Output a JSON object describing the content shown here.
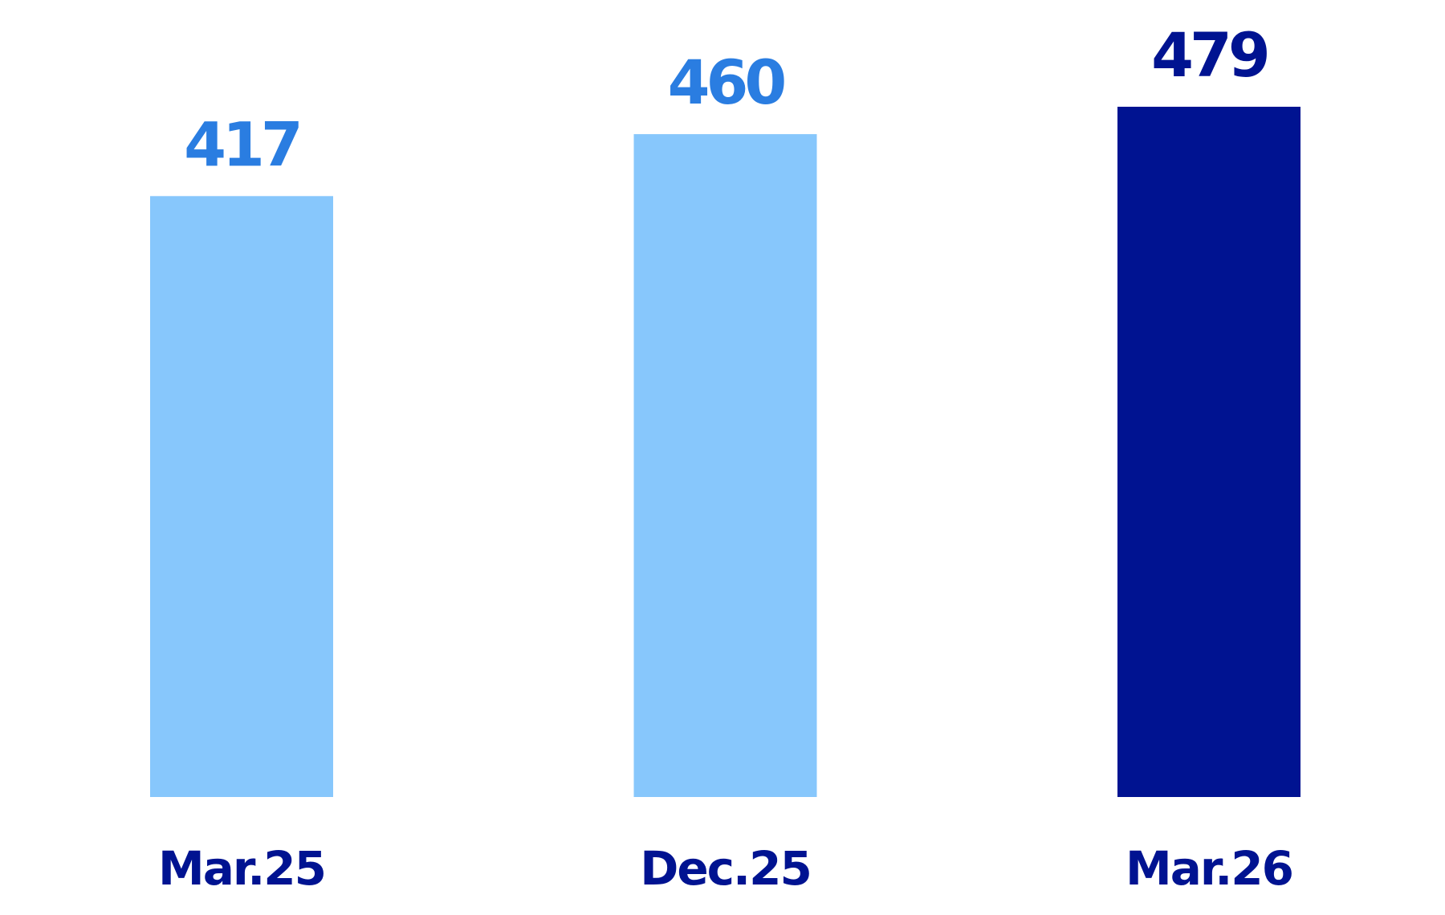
{
  "chart_data": {
    "type": "bar",
    "categories": [
      "Mar.25",
      "Dec.25",
      "Mar.26"
    ],
    "values": [
      417,
      460,
      479
    ],
    "colors": [
      "#87c7fc",
      "#87c7fc",
      "#001391"
    ],
    "label_colors": [
      "#2a7de1",
      "#2a7de1",
      "#001391"
    ]
  }
}
